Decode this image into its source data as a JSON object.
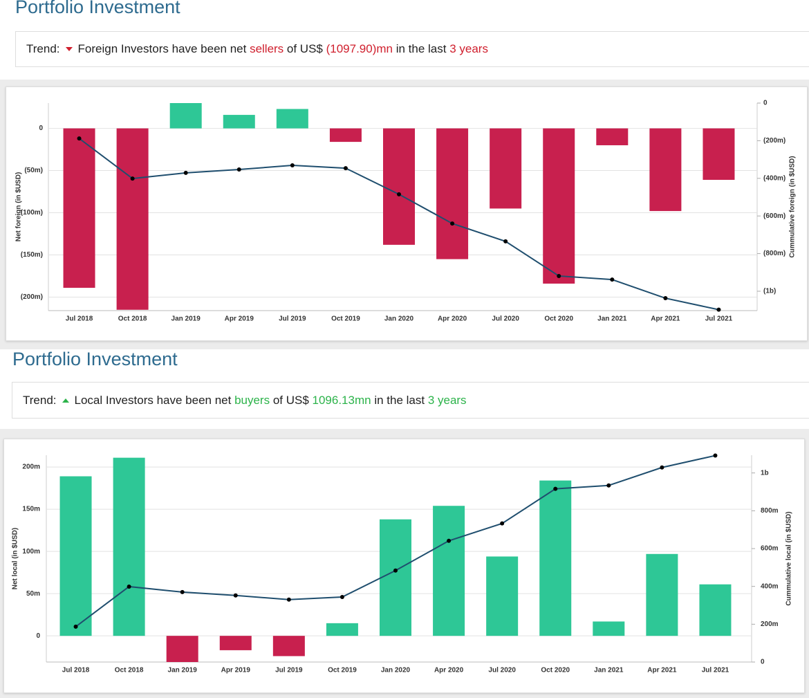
{
  "sections": [
    {
      "title": "Portfolio Investment",
      "trend_label": "Trend:",
      "direction": "down",
      "parts": [
        {
          "text": "Foreign Investors have been net "
        },
        {
          "text": "sellers",
          "color": "#d0202e"
        },
        {
          "text": " of US$ "
        },
        {
          "text": "(1097.90)mn",
          "color": "#d0202e"
        },
        {
          "text": " in the last "
        },
        {
          "text": "3 years",
          "color": "#d0202e"
        }
      ]
    },
    {
      "title": "Portfolio Investment",
      "trend_label": "Trend:",
      "direction": "up",
      "parts": [
        {
          "text": "Local Investors have been net "
        },
        {
          "text": "buyers",
          "color": "#2cb34a"
        },
        {
          "text": " of US$ "
        },
        {
          "text": "1096.13mn",
          "color": "#2cb34a"
        },
        {
          "text": " in the last "
        },
        {
          "text": "3 years",
          "color": "#2cb34a"
        }
      ]
    }
  ],
  "chart_data": [
    {
      "type": "combo",
      "ylabel": "Net foreign (in $USD)",
      "y2label": "Cummulative foreign (in $USD)",
      "categories": [
        "Jul 2018",
        "Oct 2018",
        "Jan 2019",
        "Apr 2019",
        "Jul 2019",
        "Oct 2019",
        "Jan 2020",
        "Apr 2020",
        "Jul 2020",
        "Oct 2020",
        "Jan 2021",
        "Apr 2021",
        "Jul 2021"
      ],
      "ylim": [
        -216,
        30
      ],
      "yticks": [
        0,
        {
          "value": -50,
          "label": "(50m)"
        },
        {
          "value": -100,
          "label": "(100m)"
        },
        {
          "value": -150,
          "label": "(150m)"
        },
        {
          "value": -200,
          "label": "(200m)"
        }
      ],
      "y2lim": [
        -1103,
        0
      ],
      "y2ticks": [
        0,
        {
          "value": -200,
          "label": "(200m)"
        },
        {
          "value": -400,
          "label": "(400m)"
        },
        {
          "value": -600,
          "label": "(600m)"
        },
        {
          "value": -800,
          "label": "(800m)"
        },
        {
          "value": -1000,
          "label": "(1b)"
        }
      ],
      "grid": true,
      "series": [
        {
          "type": "bar",
          "positive_color": "#2ec796",
          "negative_color": "#c8204e",
          "values": [
            -189,
            -215,
            30,
            16,
            23,
            -16,
            -138,
            -155,
            -95,
            -184,
            -20,
            -98,
            -61
          ]
        },
        {
          "type": "line",
          "axis": "y2",
          "color": "#1f4e6e",
          "values": [
            -188,
            -401,
            -371,
            -353,
            -331,
            -346,
            -485,
            -640,
            -735,
            -919,
            -938,
            -1037,
            -1098
          ]
        }
      ]
    },
    {
      "type": "combo",
      "ylabel": "Net local (in $USD)",
      "y2label": "Cummulative local (in $USD)",
      "categories": [
        "Jul 2018",
        "Oct 2018",
        "Jan 2019",
        "Apr 2019",
        "Jul 2019",
        "Oct 2019",
        "Jan 2020",
        "Apr 2020",
        "Jul 2020",
        "Oct 2020",
        "Jan 2021",
        "Apr 2021",
        "Jul 2021"
      ],
      "ylim": [
        -31,
        214
      ],
      "yticks": [
        0,
        {
          "value": 50,
          "label": "50m"
        },
        {
          "value": 100,
          "label": "100m"
        },
        {
          "value": 150,
          "label": "150m"
        },
        {
          "value": 200,
          "label": "200m"
        }
      ],
      "y2lim": [
        0,
        1094
      ],
      "y2ticks": [
        0,
        {
          "value": 200,
          "label": "200m"
        },
        {
          "value": 400,
          "label": "400m"
        },
        {
          "value": 600,
          "label": "600m"
        },
        {
          "value": 800,
          "label": "800m"
        },
        {
          "value": 1000,
          "label": "1b"
        }
      ],
      "grid": true,
      "series": [
        {
          "type": "bar",
          "positive_color": "#2ec796",
          "negative_color": "#c8204e",
          "values": [
            189,
            211,
            -31,
            -17,
            -24,
            15,
            138,
            154,
            94,
            184,
            17,
            97,
            61
          ]
        },
        {
          "type": "line",
          "axis": "y2",
          "color": "#1f4e6e",
          "values": [
            187,
            399,
            370,
            352,
            330,
            344,
            484,
            641,
            733,
            916,
            934,
            1029,
            1092
          ]
        }
      ]
    }
  ]
}
